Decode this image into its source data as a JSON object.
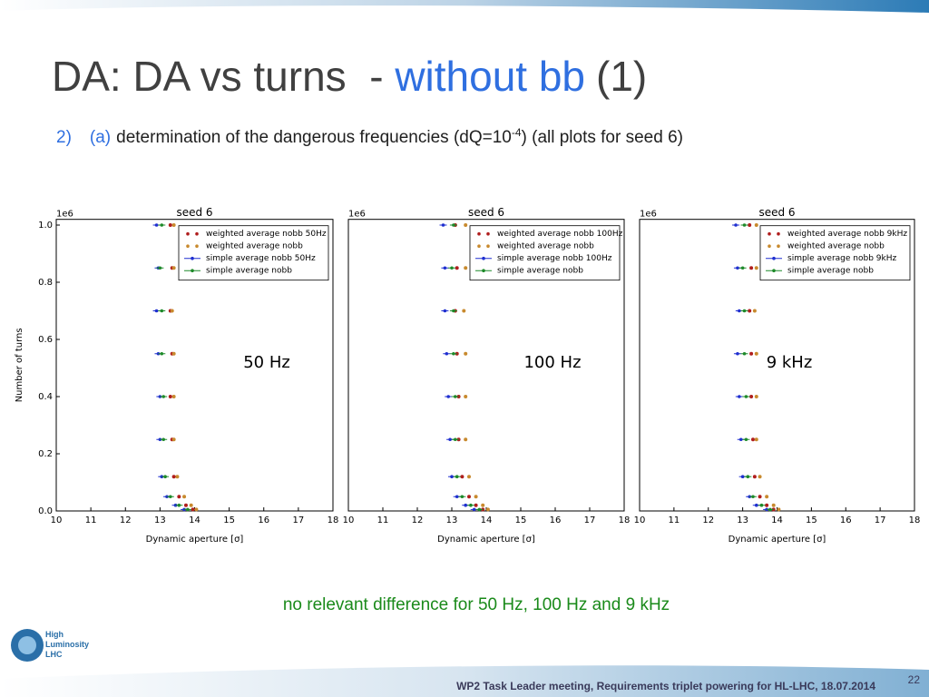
{
  "slide": {
    "title": {
      "prefix": "DA: DA vs turns  - ",
      "highlight": "without bb",
      "suffix": "(1)"
    },
    "subtitle": {
      "number": "2)",
      "letter": "(a)",
      "text": "determination of the dangerous frequencies (dQ=10",
      "superscript": "-4",
      "suffix": ") (all plots for seed 6)"
    },
    "conclusion": "no relevant difference for 50 Hz, 100 Hz and 9 kHz",
    "logo": [
      "High",
      "Luminosity",
      "LHC"
    ],
    "footer": "WP2 Task Leader meeting, Requirements triplet powering for HL-LHC, 18.07.2014",
    "page_number": 22
  },
  "chart_data": [
    {
      "type": "scatter",
      "title": "seed 6",
      "offset_label": "1e6",
      "annotation": "50 Hz",
      "xlabel": "Dynamic aperture [σ]",
      "ylabel": "Number of turns",
      "xlim": [
        10,
        18
      ],
      "ylim": [
        0,
        1.02
      ],
      "xticks": [
        10,
        11,
        12,
        13,
        14,
        15,
        16,
        17,
        18
      ],
      "yticks": [
        {
          "value": 0,
          "label": "0.0"
        },
        0.2,
        0.4,
        0.6,
        0.8,
        {
          "value": 1,
          "label": "1.0"
        }
      ],
      "legend": "upper right",
      "series": [
        {
          "name": "weighted average nobb 50Hz",
          "color": "#b01e1e",
          "marker": "dot",
          "x": [
            13.3,
            13.35,
            13.3,
            13.35,
            13.3,
            13.35,
            13.4,
            13.55,
            13.75,
            13.95
          ],
          "values": [
            1.0,
            0.85,
            0.7,
            0.55,
            0.4,
            0.25,
            0.12,
            0.05,
            0.02,
            0.005
          ]
        },
        {
          "name": "weighted average nobb",
          "color": "#c88a2e",
          "marker": "dot",
          "x": [
            13.4,
            13.4,
            13.35,
            13.4,
            13.4,
            13.4,
            13.5,
            13.7,
            13.9,
            14.05
          ],
          "values": [
            1.0,
            0.85,
            0.7,
            0.55,
            0.4,
            0.25,
            0.12,
            0.05,
            0.02,
            0.005
          ]
        },
        {
          "name": "simple average nobb 50Hz",
          "color": "#1f2fd0",
          "marker": "errorbar",
          "x": [
            12.9,
            12.95,
            12.9,
            12.95,
            13.0,
            13.0,
            13.05,
            13.2,
            13.45,
            13.7
          ],
          "values": [
            1.0,
            0.85,
            0.7,
            0.55,
            0.4,
            0.25,
            0.12,
            0.05,
            0.02,
            0.005
          ]
        },
        {
          "name": "simple average nobb",
          "color": "#1e8a2a",
          "marker": "errorbar",
          "x": [
            13.05,
            13.0,
            13.05,
            13.05,
            13.1,
            13.1,
            13.15,
            13.3,
            13.55,
            13.8
          ],
          "values": [
            1.0,
            0.85,
            0.7,
            0.55,
            0.4,
            0.25,
            0.12,
            0.05,
            0.02,
            0.005
          ]
        }
      ]
    },
    {
      "type": "scatter",
      "title": "seed 6",
      "offset_label": "1e6",
      "annotation": "100 Hz",
      "xlabel": "Dynamic aperture [σ]",
      "xlim": [
        10,
        18
      ],
      "ylim": [
        0,
        1.02
      ],
      "xticks": [
        10,
        11,
        12,
        13,
        14,
        15,
        16,
        17,
        18
      ],
      "legend": "upper right",
      "series": [
        {
          "name": "weighted average nobb 100Hz",
          "color": "#b01e1e",
          "marker": "dot",
          "x": [
            13.1,
            13.15,
            13.1,
            13.15,
            13.2,
            13.2,
            13.3,
            13.5,
            13.7,
            13.9
          ],
          "values": [
            1.0,
            0.85,
            0.7,
            0.55,
            0.4,
            0.25,
            0.12,
            0.05,
            0.02,
            0.005
          ]
        },
        {
          "name": "weighted average nobb",
          "color": "#c88a2e",
          "marker": "dot",
          "x": [
            13.4,
            13.4,
            13.35,
            13.4,
            13.4,
            13.4,
            13.5,
            13.7,
            13.9,
            14.05
          ],
          "values": [
            1.0,
            0.85,
            0.7,
            0.55,
            0.4,
            0.25,
            0.12,
            0.05,
            0.02,
            0.005
          ]
        },
        {
          "name": "simple average nobb 100Hz",
          "color": "#1f2fd0",
          "marker": "errorbar",
          "x": [
            12.75,
            12.8,
            12.8,
            12.85,
            12.9,
            12.95,
            13.0,
            13.15,
            13.4,
            13.65
          ],
          "values": [
            1.0,
            0.85,
            0.7,
            0.55,
            0.4,
            0.25,
            0.12,
            0.05,
            0.02,
            0.005
          ]
        },
        {
          "name": "simple average nobb",
          "color": "#1e8a2a",
          "marker": "errorbar",
          "x": [
            13.05,
            13.0,
            13.05,
            13.05,
            13.1,
            13.1,
            13.15,
            13.3,
            13.55,
            13.8
          ],
          "values": [
            1.0,
            0.85,
            0.7,
            0.55,
            0.4,
            0.25,
            0.12,
            0.05,
            0.02,
            0.005
          ]
        }
      ]
    },
    {
      "type": "scatter",
      "title": "seed 6",
      "offset_label": "1e6",
      "annotation": "9 kHz",
      "xlabel": "Dynamic aperture [σ]",
      "xlim": [
        10,
        18
      ],
      "ylim": [
        0,
        1.02
      ],
      "xticks": [
        10,
        11,
        12,
        13,
        14,
        15,
        16,
        17,
        18
      ],
      "legend": "upper right",
      "series": [
        {
          "name": "weighted average nobb 9kHz",
          "color": "#b01e1e",
          "marker": "dot",
          "x": [
            13.2,
            13.25,
            13.2,
            13.25,
            13.25,
            13.3,
            13.35,
            13.5,
            13.7,
            13.9
          ],
          "values": [
            1.0,
            0.85,
            0.7,
            0.55,
            0.4,
            0.25,
            0.12,
            0.05,
            0.02,
            0.005
          ]
        },
        {
          "name": "weighted average nobb",
          "color": "#c88a2e",
          "marker": "dot",
          "x": [
            13.4,
            13.4,
            13.35,
            13.4,
            13.4,
            13.4,
            13.5,
            13.7,
            13.9,
            14.05
          ],
          "values": [
            1.0,
            0.85,
            0.7,
            0.55,
            0.4,
            0.25,
            0.12,
            0.05,
            0.02,
            0.005
          ]
        },
        {
          "name": "simple average nobb 9kHz",
          "color": "#1f2fd0",
          "marker": "errorbar",
          "x": [
            12.8,
            12.85,
            12.9,
            12.85,
            12.9,
            12.95,
            13.0,
            13.2,
            13.4,
            13.7
          ],
          "values": [
            1.0,
            0.85,
            0.7,
            0.55,
            0.4,
            0.25,
            0.12,
            0.05,
            0.02,
            0.005
          ]
        },
        {
          "name": "simple average nobb",
          "color": "#1e8a2a",
          "marker": "errorbar",
          "x": [
            13.05,
            13.0,
            13.05,
            13.05,
            13.1,
            13.1,
            13.15,
            13.3,
            13.55,
            13.8
          ],
          "values": [
            1.0,
            0.85,
            0.7,
            0.55,
            0.4,
            0.25,
            0.12,
            0.05,
            0.02,
            0.005
          ]
        }
      ]
    }
  ]
}
